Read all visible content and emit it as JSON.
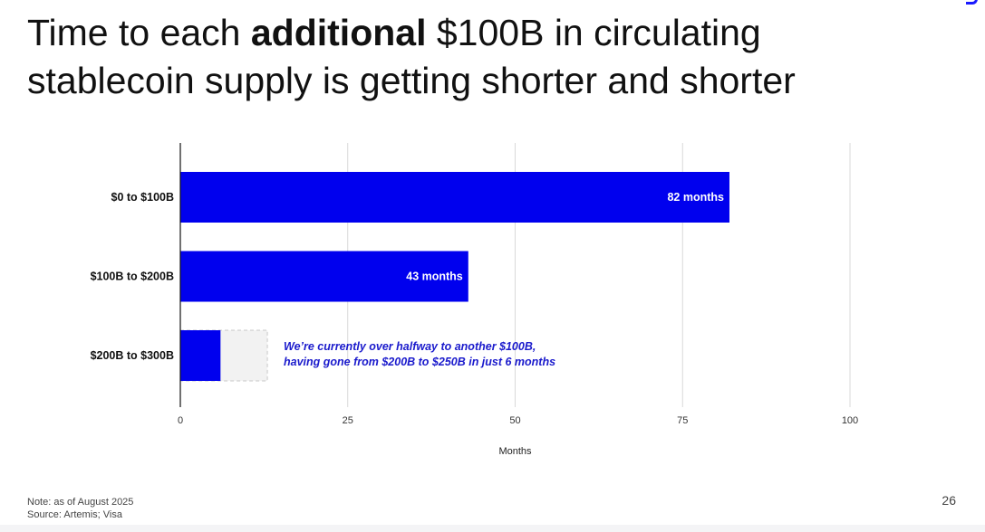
{
  "slide": {
    "title_prefix": "Time to each ",
    "title_bold": "additional",
    "title_suffix": " $100B in circulating",
    "title_line2": "stablecoin supply is getting shorter and shorter",
    "note": "Note: as of August 2025",
    "source": "Source: Artemis; Visa",
    "page_number": "26"
  },
  "colors": {
    "bar": "#0000ee",
    "projection_fill": "#f2f2f2",
    "projection_stroke": "#c8c8c8",
    "annotation": "#1a1acc",
    "grid": "#d9d9d9",
    "axis": "#111111"
  },
  "chart_data": {
    "type": "bar",
    "orientation": "horizontal",
    "categories": [
      "$0 to $100B",
      "$100B to $200B",
      "$200B to $300B"
    ],
    "values": [
      82,
      43,
      6
    ],
    "projected_values": [
      null,
      null,
      13
    ],
    "data_labels": [
      "82 months",
      "43 months",
      ""
    ],
    "xlabel": "Months",
    "ylabel": "",
    "xlim": [
      0,
      100
    ],
    "xticks": [
      0,
      25,
      50,
      75,
      100
    ],
    "grid": true,
    "annotation": {
      "category": "$200B to $300B",
      "lines": [
        "We’re currently over halfway to another $100B,",
        "having gone from $200B to $250B in just 6 months"
      ]
    }
  }
}
